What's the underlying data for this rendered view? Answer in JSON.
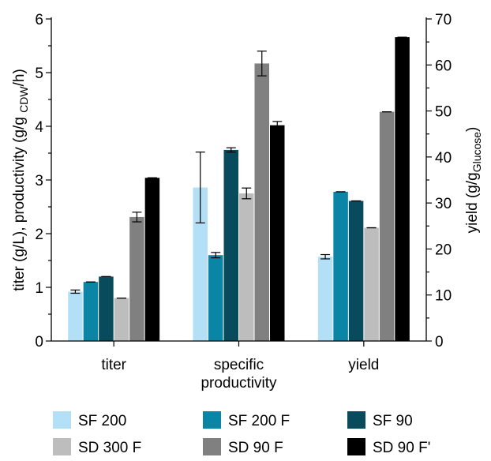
{
  "chart_data": {
    "type": "bar",
    "categories": [
      "titer",
      "specific productivity",
      "yield"
    ],
    "category_label_lines": [
      [
        "titer"
      ],
      [
        "specific",
        "productivity"
      ],
      [
        "yield"
      ]
    ],
    "series": [
      {
        "name": "SF 200",
        "color": "#b3e0f7",
        "values": [
          0.92,
          2.86,
          1.57
        ],
        "errors": [
          0.03,
          0.66,
          0.04
        ]
      },
      {
        "name": "SF 200 F",
        "color": "#0a85a6",
        "values": [
          1.1,
          1.6,
          2.78
        ],
        "errors": [
          0.0,
          0.05,
          0.0
        ]
      },
      {
        "name": "SF 90",
        "color": "#074b5c",
        "values": [
          1.2,
          3.56,
          2.61
        ],
        "errors": [
          0.0,
          0.04,
          0.0
        ]
      },
      {
        "name": "SD 300 F",
        "color": "#bdbdbd",
        "values": [
          0.8,
          2.75,
          2.11
        ],
        "errors": [
          0.0,
          0.1,
          0.0
        ]
      },
      {
        "name": "SD 90 F",
        "color": "#808080",
        "values": [
          2.31,
          5.17,
          4.27
        ],
        "errors": [
          0.09,
          0.23,
          0.0
        ]
      },
      {
        "name": "SD 90 F'",
        "color": "#000000",
        "values": [
          3.04,
          4.02,
          5.66
        ],
        "errors": [
          0.0,
          0.07,
          0.0
        ]
      }
    ],
    "ylim": [
      0,
      6
    ],
    "yticks": [
      "0",
      "1",
      "2",
      "3",
      "4",
      "5",
      "6"
    ],
    "y2lim": [
      0,
      70
    ],
    "y2ticks": [
      "0",
      "10",
      "20",
      "30",
      "40",
      "50",
      "60",
      "70"
    ],
    "ylabel": "titer (g/L), productivity (g/g CDW/h)",
    "ylabel_parts": {
      "main": "titer (g/L), productivity (g/g ",
      "sub": "CDW",
      "tail": "/h)"
    },
    "y2label_parts": {
      "main": "yield (g/g",
      "sub": "Glucose",
      "tail": ")"
    },
    "legend_placement": "bottom",
    "grid": false
  }
}
